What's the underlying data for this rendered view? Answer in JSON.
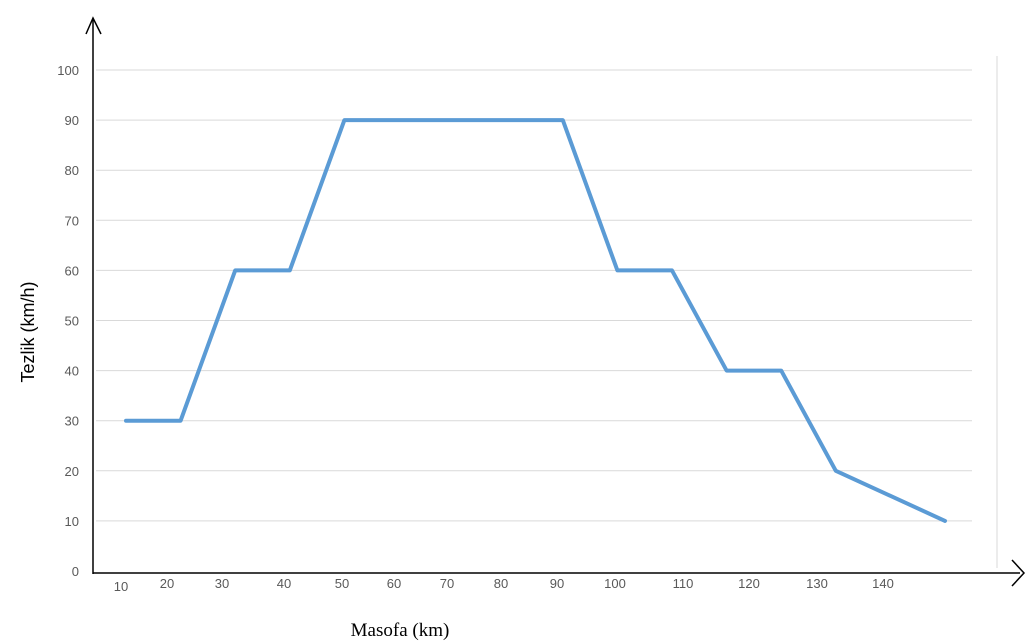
{
  "chart_data": {
    "type": "line",
    "xlabel": "Masofa (km)",
    "ylabel": "Tezlik (km/h)",
    "ylim": [
      0,
      100
    ],
    "y_ticks": [
      "0",
      "10",
      "20",
      "30",
      "40",
      "50",
      "60",
      "70",
      "80",
      "90",
      "100"
    ],
    "x_tick_labels": [
      "10",
      "20",
      "30",
      "40",
      "50",
      "60",
      "70",
      "80",
      "90",
      "100",
      "110",
      "120",
      "130",
      "140"
    ],
    "grid": true,
    "series": [
      {
        "color": "#5b9bd5",
        "points": [
          {
            "x": 10,
            "y": 30
          },
          {
            "x": 20,
            "y": 30
          },
          {
            "x": 30,
            "y": 60
          },
          {
            "x": 40,
            "y": 60
          },
          {
            "x": 50,
            "y": 90
          },
          {
            "x": 90,
            "y": 90
          },
          {
            "x": 100,
            "y": 60
          },
          {
            "x": 110,
            "y": 60
          },
          {
            "x": 120,
            "y": 40
          },
          {
            "x": 130,
            "y": 40
          },
          {
            "x": 140,
            "y": 20
          },
          {
            "x": 160,
            "y": 10
          }
        ]
      }
    ]
  }
}
